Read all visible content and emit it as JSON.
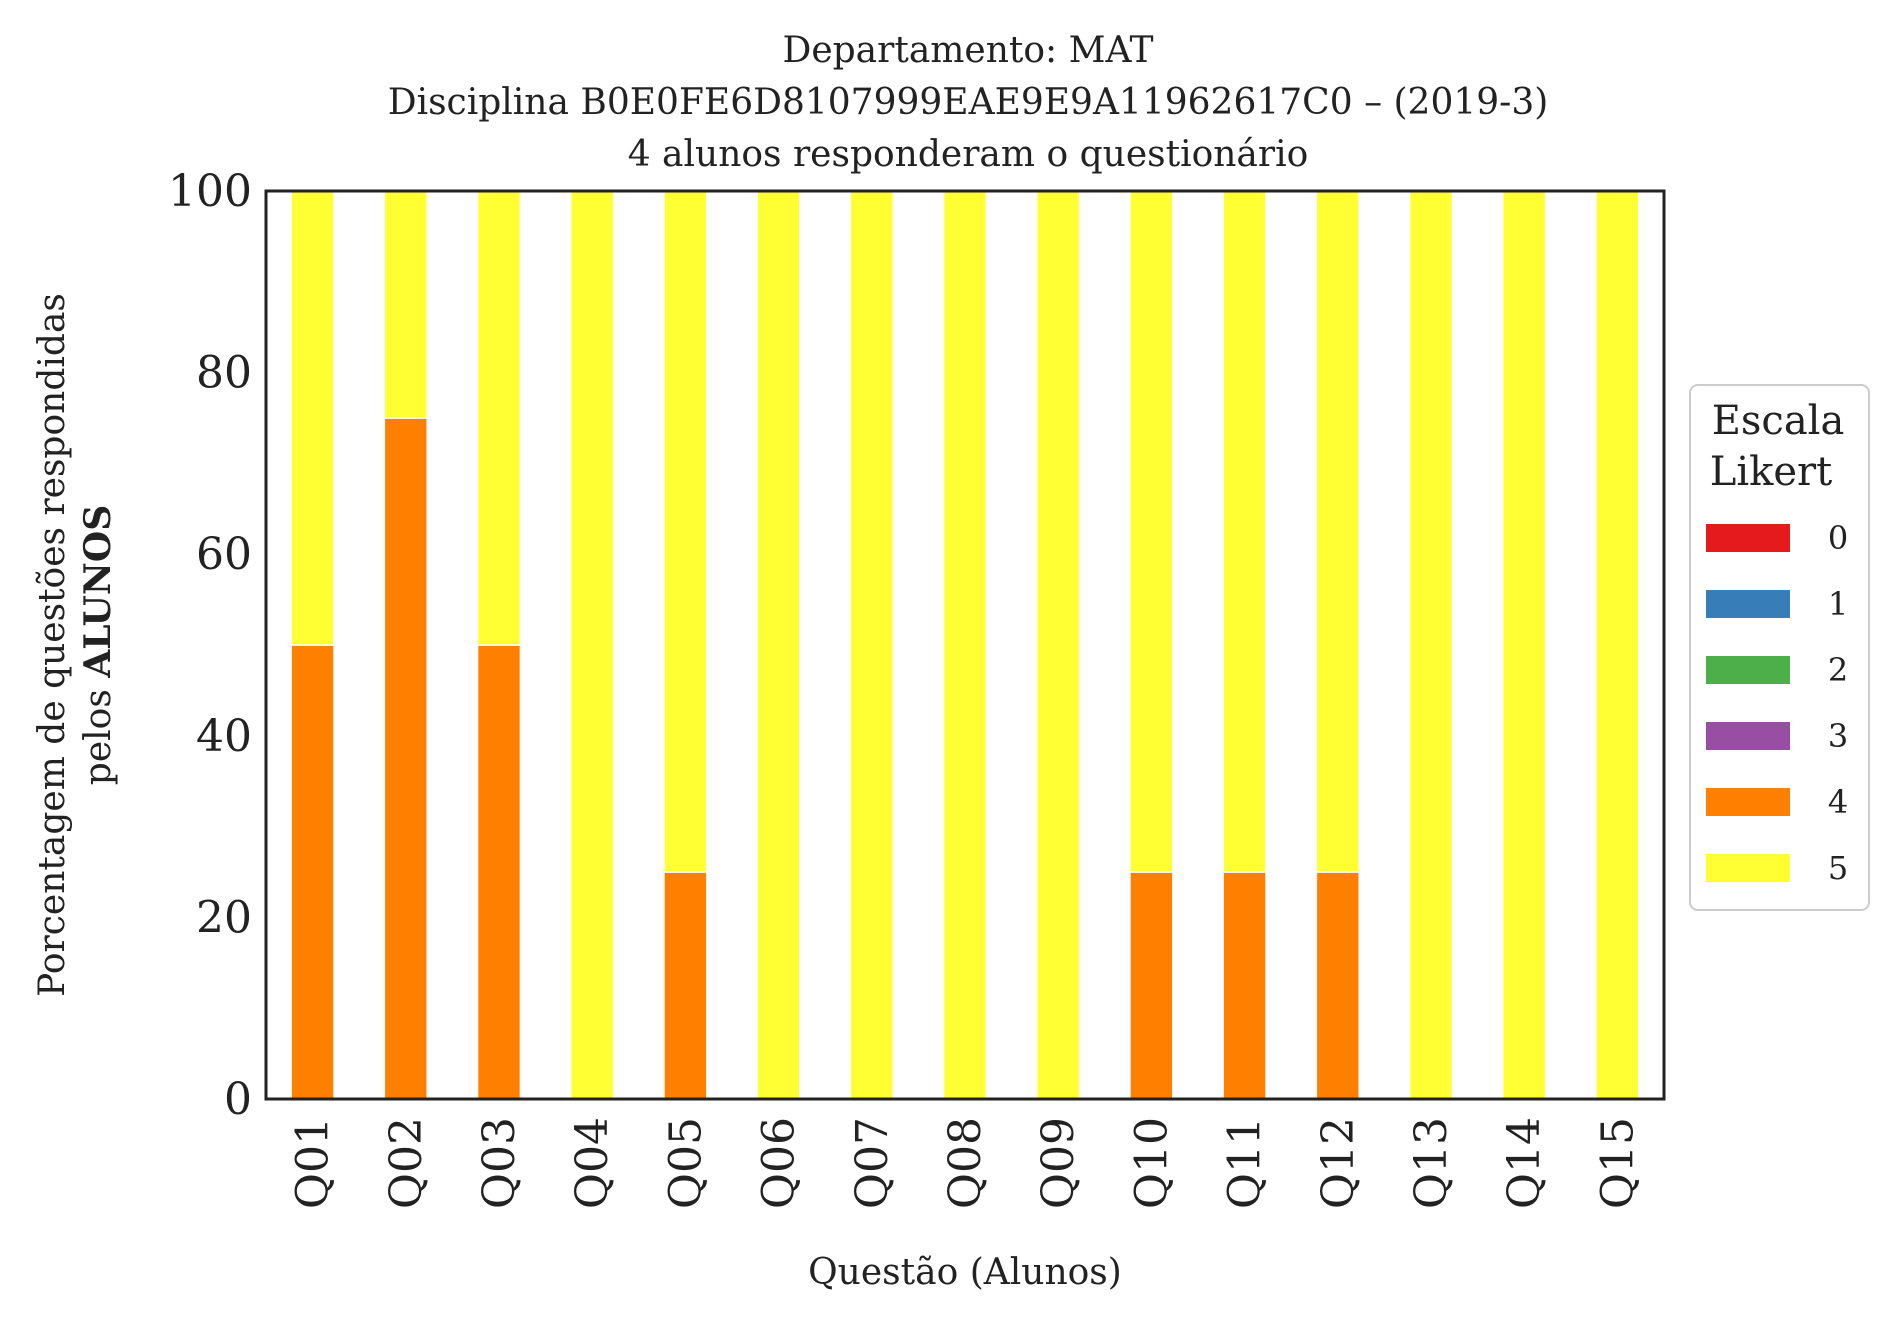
{
  "chart_data": {
    "type": "bar",
    "stacked": true,
    "title_lines": [
      "Departamento: MAT",
      "Disciplina B0E0FE6D8107999EAE9E9A11962617C0 – (2019-3)",
      "4 alunos responderam o questionário"
    ],
    "ylabel_line1": "Porcentagem de questões respondidas",
    "ylabel_line2_prefix": "pelos ",
    "ylabel_line2_bold": "ALUNOS",
    "xlabel": "Questão (Alunos)",
    "ylim": [
      0,
      100
    ],
    "yticks": [
      "0",
      "20",
      "40",
      "60",
      "80",
      "100"
    ],
    "categories": [
      "Q01",
      "Q02",
      "Q03",
      "Q04",
      "Q05",
      "Q06",
      "Q07",
      "Q08",
      "Q09",
      "Q10",
      "Q11",
      "Q12",
      "Q13",
      "Q14",
      "Q15"
    ],
    "series": [
      {
        "name": "0",
        "color": "#e41a1c",
        "values": [
          0,
          0,
          0,
          0,
          0,
          0,
          0,
          0,
          0,
          0,
          0,
          0,
          0,
          0,
          0
        ]
      },
      {
        "name": "1",
        "color": "#377eb8",
        "values": [
          0,
          0,
          0,
          0,
          0,
          0,
          0,
          0,
          0,
          0,
          0,
          0,
          0,
          0,
          0
        ]
      },
      {
        "name": "2",
        "color": "#4daf4a",
        "values": [
          0,
          0,
          0,
          0,
          0,
          0,
          0,
          0,
          0,
          0,
          0,
          0,
          0,
          0,
          0
        ]
      },
      {
        "name": "3",
        "color": "#984ea3",
        "values": [
          0,
          0,
          0,
          0,
          0,
          0,
          0,
          0,
          0,
          0,
          0,
          0,
          0,
          0,
          0
        ]
      },
      {
        "name": "4",
        "color": "#ff7f00",
        "values": [
          50,
          75,
          50,
          0,
          25,
          0,
          0,
          0,
          0,
          25,
          25,
          25,
          0,
          0,
          0
        ]
      },
      {
        "name": "5",
        "color": "#ffff33",
        "values": [
          50,
          25,
          50,
          100,
          75,
          100,
          100,
          100,
          100,
          75,
          75,
          75,
          100,
          100,
          100
        ]
      }
    ],
    "legend": {
      "title_line1": "Escala",
      "title_line2": "Likert",
      "placement": "right"
    },
    "grid": false
  }
}
